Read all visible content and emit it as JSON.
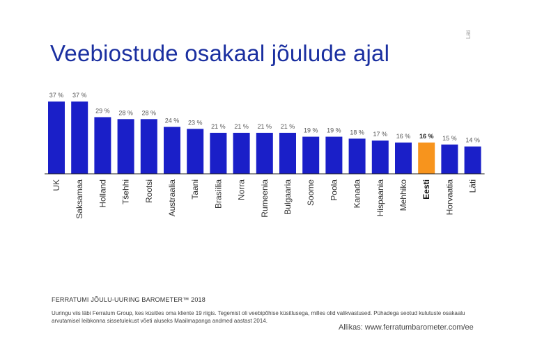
{
  "page": {
    "title": "Veebiostude osakaal jõulude ajal",
    "corner_mark": "Läti",
    "footer_heading": "FERRATUMI JÕULU-UURING BAROMETER™ 2018",
    "footer_note": "Uuringu viis läbi Ferratum Group, kes küsitles oma kliente 19 riigis. Tegemist oli veebipõhise küsitlusega, milles olid valikvastused. Pühadega seotud kulutuste osakaalu arvutamisel leibkonna sissetulekust võeti aluseks Maailmapanga andmed aastast 2014.",
    "source": "Allikas:  www.ferratumbarometer.com/ee"
  },
  "chart_data": {
    "type": "bar",
    "categories": [
      "UK",
      "Saksamaa",
      "Holland",
      "Tšehhi",
      "Rootsi",
      "Austraalia",
      "Taani",
      "Brasiilia",
      "Norra",
      "Rumeenia",
      "Bulgaaria",
      "Soome",
      "Poola",
      "Kanada",
      "Hispaania",
      "Mehhiko",
      "Eesti",
      "Horvaatia",
      "Läti"
    ],
    "values": [
      37,
      37,
      29,
      28,
      28,
      24,
      23,
      21,
      21,
      21,
      21,
      19,
      19,
      18,
      17,
      16,
      16,
      15,
      14
    ],
    "value_labels": [
      "37 %",
      "37 %",
      "29 %",
      "28 %",
      "28 %",
      "24 %",
      "23 %",
      "21 %",
      "21 %",
      "21 %",
      "21 %",
      "19 %",
      "19 %",
      "18 %",
      "17 %",
      "16 %",
      "16 %",
      "15 %",
      "14 %"
    ],
    "highlight": "Eesti",
    "colors": {
      "bar": "#1a1fc8",
      "highlight": "#f7941d",
      "label": "#555555",
      "axis": "#222222"
    },
    "ylim": [
      0,
      37
    ],
    "grid": false,
    "legend": "none"
  }
}
